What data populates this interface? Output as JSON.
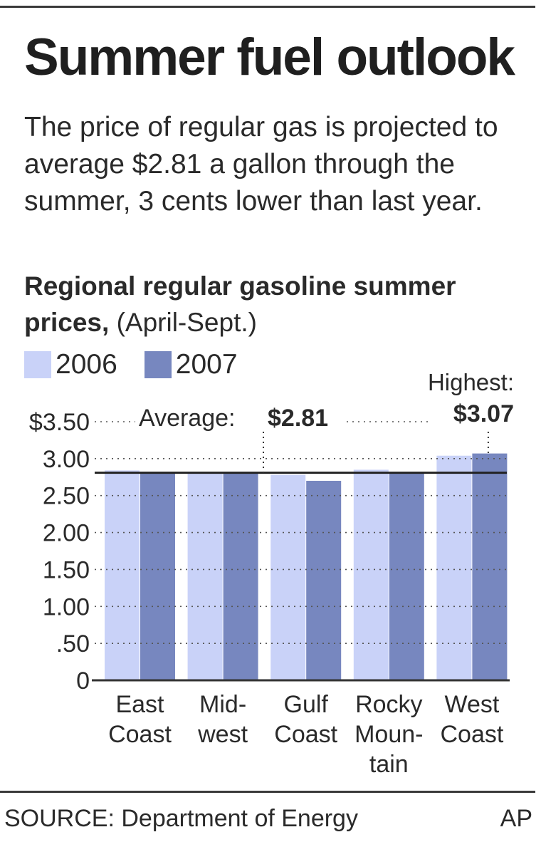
{
  "header": {
    "title": "Summer fuel outlook",
    "intro": "The price of regular gas is projected to average $2.81 a gallon through the summer, 3 cents lower than last year.",
    "subtitle_bold": "Regional regular gasoline summer prices,",
    "subtitle_rest": " (April-Sept.)"
  },
  "footer": {
    "source": "SOURCE: Department of Energy",
    "credit": "AP"
  },
  "colors": {
    "series_2006": "#c9d2f8",
    "series_2007": "#7787bf",
    "grid": "#555555",
    "average_line": "#222222"
  },
  "chart_data": {
    "type": "bar",
    "title": "Summer fuel outlook",
    "subtitle": "Regional regular gasoline summer prices, (April-Sept.)",
    "categories": [
      "East Coast",
      "Mid-west",
      "Gulf Coast",
      "Rocky Mountain",
      "West Coast"
    ],
    "category_lines": [
      [
        "East",
        "Coast"
      ],
      [
        "Mid-",
        "west"
      ],
      [
        "Gulf",
        "Coast"
      ],
      [
        "Rocky",
        "Moun-",
        "tain"
      ],
      [
        "West",
        "Coast"
      ]
    ],
    "series": [
      {
        "name": "2006",
        "color": "#c9d2f8",
        "values": [
          2.84,
          2.81,
          2.78,
          2.85,
          3.04
        ]
      },
      {
        "name": "2007",
        "color": "#7787bf",
        "values": [
          2.8,
          2.8,
          2.7,
          2.81,
          3.07
        ]
      }
    ],
    "ylim": [
      0,
      3.5
    ],
    "yticks": [
      {
        "value": 3.5,
        "label": "$3.50"
      },
      {
        "value": 3.0,
        "label": "3.00"
      },
      {
        "value": 2.5,
        "label": "2.50"
      },
      {
        "value": 2.0,
        "label": "2.00"
      },
      {
        "value": 1.5,
        "label": "1.50"
      },
      {
        "value": 1.0,
        "label": "1.00"
      },
      {
        "value": 0.5,
        "label": ".50"
      },
      {
        "value": 0,
        "label": "0"
      }
    ],
    "grid": true,
    "legend": "top-left",
    "average": {
      "value": 2.81,
      "label": "Average:",
      "value_label": "$2.81"
    },
    "highest": {
      "label": "Highest:",
      "value_label": "$3.07",
      "category_index": 4,
      "series_index": 1
    }
  }
}
